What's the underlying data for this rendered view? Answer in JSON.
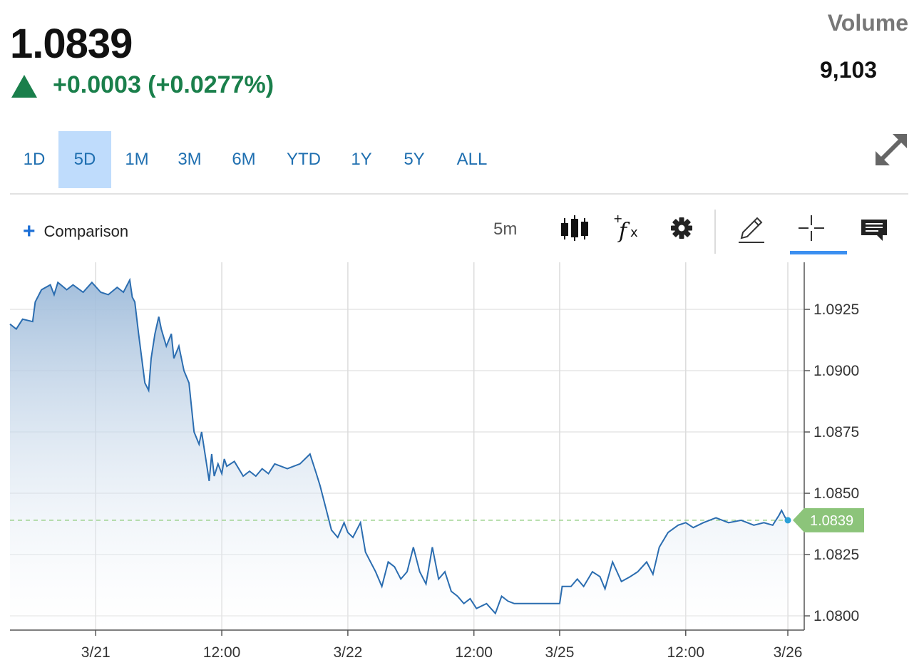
{
  "quote": {
    "last": "1.0839",
    "change": "+0.0003 (+0.0277%)",
    "direction": "up",
    "change_color": "#1a7f4b",
    "volume_label": "Volume",
    "volume_value": "9,103"
  },
  "ranges": {
    "items": [
      "1D",
      "5D",
      "1M",
      "3M",
      "6M",
      "YTD",
      "1Y",
      "5Y",
      "ALL"
    ],
    "active": "5D"
  },
  "toolbar": {
    "comparison_label": "Comparison",
    "interval": "5m",
    "icons": [
      "candlestick-icon",
      "indicators-fx-icon",
      "gear-icon",
      "pencil-icon",
      "crosshair-icon",
      "comment-icon"
    ],
    "active_tool": "crosshair-icon"
  },
  "chart_data": {
    "type": "area",
    "title": "",
    "xlabel": "",
    "ylabel": "",
    "x_ticks": [
      {
        "label": "3/21",
        "x": 0.68
      },
      {
        "label": "12:00",
        "x": 1.68
      },
      {
        "label": "3/22",
        "x": 2.68
      },
      {
        "label": "12:00",
        "x": 3.68
      },
      {
        "label": "3/25",
        "x": 4.36
      },
      {
        "label": "12:00",
        "x": 5.36
      },
      {
        "label": "3/26",
        "x": 6.17
      }
    ],
    "y_ticks": [
      1.08,
      1.0825,
      1.085,
      1.0875,
      1.09,
      1.0925
    ],
    "y_tick_labels": [
      "1.0800",
      "1.0825",
      "1.0850",
      "1.0875",
      "1.0900",
      "1.0925"
    ],
    "xlim": [
      0,
      6.3
    ],
    "ylim": [
      1.07942,
      1.09442
    ],
    "grid": true,
    "last_value": 1.0839,
    "last_label": "1.0839",
    "line_color": "#2b6db0",
    "fill_color": "#9ebbda",
    "last_marker_color": "#8cc47a",
    "series": [
      {
        "x": [
          0.0,
          0.05,
          0.1,
          0.18,
          0.2,
          0.25,
          0.32,
          0.35,
          0.38,
          0.45,
          0.5,
          0.58,
          0.65,
          0.72,
          0.78,
          0.85,
          0.9,
          0.95,
          0.97,
          0.99,
          1.02,
          1.07,
          1.1,
          1.12,
          1.15,
          1.18,
          1.2,
          1.24,
          1.28,
          1.3,
          1.34,
          1.38,
          1.42,
          1.46,
          1.5,
          1.52,
          1.55,
          1.58,
          1.6,
          1.62,
          1.65,
          1.68,
          1.7,
          1.72,
          1.78,
          1.85,
          1.9,
          1.95,
          2.0,
          2.05,
          2.1,
          2.2,
          2.3,
          2.38,
          2.43,
          2.46,
          2.5,
          2.55,
          2.6,
          2.65,
          2.68,
          2.72,
          2.78,
          2.82,
          2.86,
          2.9,
          2.95,
          3.0,
          3.05,
          3.1,
          3.15,
          3.2,
          3.25,
          3.3,
          3.35,
          3.4,
          3.45,
          3.5,
          3.55,
          3.6,
          3.65,
          3.7,
          3.78,
          3.85,
          3.9,
          3.95,
          4.0,
          4.03,
          4.06,
          4.12,
          4.2,
          4.3,
          4.36,
          4.38,
          4.45,
          4.5,
          4.55,
          4.62,
          4.68,
          4.72,
          4.78,
          4.85,
          4.92,
          4.98,
          5.05,
          5.1,
          5.15,
          5.22,
          5.3,
          5.36,
          5.42,
          5.5,
          5.6,
          5.7,
          5.8,
          5.9,
          5.98,
          6.05,
          6.1,
          6.12,
          6.15,
          6.17
        ],
        "values": [
          1.0919,
          1.0917,
          1.0921,
          1.092,
          1.0928,
          1.0933,
          1.0935,
          1.0931,
          1.0936,
          1.0933,
          1.0935,
          1.0932,
          1.0936,
          1.0932,
          1.0931,
          1.0934,
          1.0932,
          1.0937,
          1.093,
          1.0928,
          1.0915,
          1.0895,
          1.0892,
          1.0905,
          1.0915,
          1.0922,
          1.0917,
          1.091,
          1.0915,
          1.0905,
          1.091,
          1.09,
          1.0895,
          1.0875,
          1.087,
          1.0875,
          1.0865,
          1.0855,
          1.0866,
          1.0857,
          1.0862,
          1.0858,
          1.0864,
          1.0861,
          1.0863,
          1.0857,
          1.0859,
          1.0857,
          1.086,
          1.0858,
          1.0862,
          1.086,
          1.0862,
          1.0866,
          1.0858,
          1.0853,
          1.0845,
          1.0835,
          1.0832,
          1.0838,
          1.0834,
          1.0832,
          1.0838,
          1.0826,
          1.0822,
          1.0818,
          1.0812,
          1.0822,
          1.082,
          1.0815,
          1.0818,
          1.0828,
          1.0818,
          1.0813,
          1.0828,
          1.0815,
          1.0818,
          1.081,
          1.0808,
          1.0805,
          1.0807,
          1.0803,
          1.0805,
          1.0801,
          1.0808,
          1.0806,
          1.0805,
          1.0805,
          1.0805,
          1.0805,
          1.0805,
          1.0805,
          1.0805,
          1.0812,
          1.0812,
          1.0815,
          1.0812,
          1.0818,
          1.0816,
          1.0811,
          1.0822,
          1.0814,
          1.0816,
          1.0818,
          1.0822,
          1.0817,
          1.0828,
          1.0834,
          1.0837,
          1.0838,
          1.0836,
          1.0838,
          1.084,
          1.0838,
          1.0839,
          1.0837,
          1.0838,
          1.0837,
          1.0841,
          1.0843,
          1.084,
          1.0839
        ]
      }
    ]
  }
}
